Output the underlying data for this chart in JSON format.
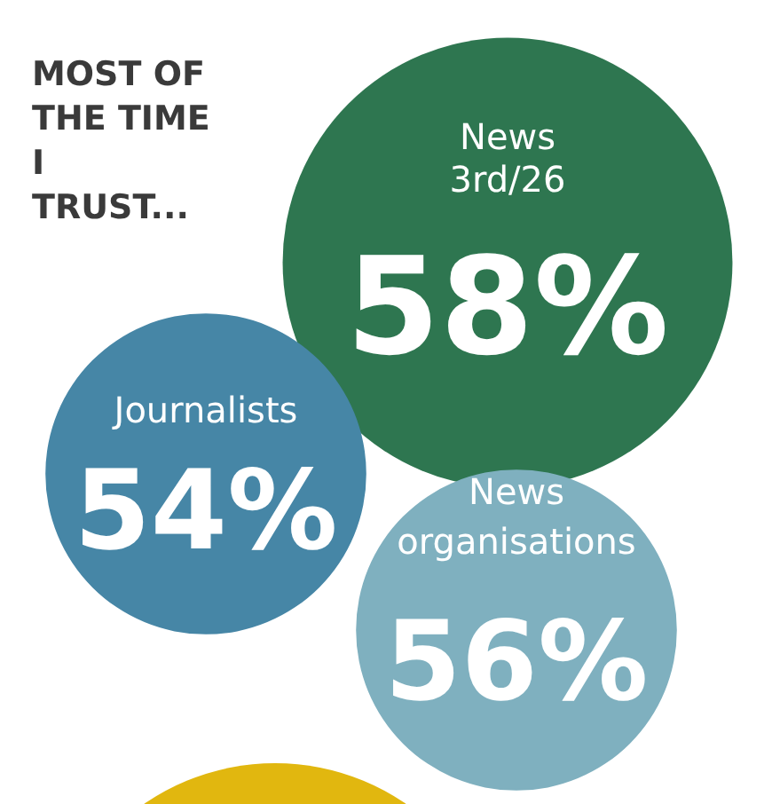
{
  "chart_data": {
    "type": "other",
    "title": "MOST OF THE TIME I TRUST...",
    "categories": [
      "News",
      "Journalists",
      "News organisations"
    ],
    "values": [
      58,
      54,
      56
    ],
    "value_labels": [
      "58%",
      "54%",
      "56%"
    ],
    "colors": [
      "#2e7650",
      "#4686a6",
      "#7fb0bf"
    ],
    "annotations": [
      "3rd/26"
    ]
  }
}
